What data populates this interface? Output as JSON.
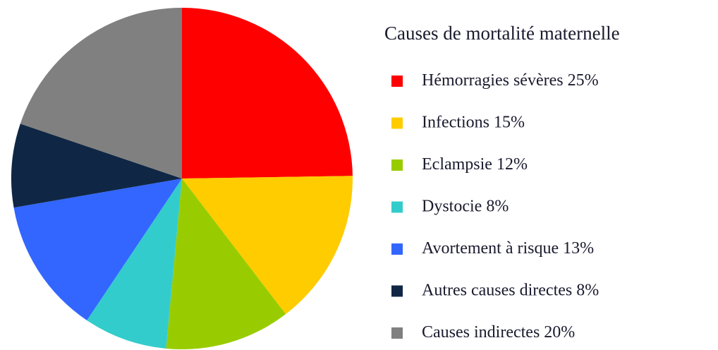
{
  "chart_data": {
    "type": "pie",
    "title": "Causes de mortalité maternelle",
    "categories": [
      "Hémorragies sévères",
      "Infections",
      "Eclampsie",
      "Dystocie",
      "Avortement à risque",
      "Autres causes directes",
      "Causes indirectes"
    ],
    "values": [
      25,
      15,
      12,
      8,
      13,
      8,
      20
    ],
    "value_labels": [
      "25%",
      "15%",
      "12%",
      "8%",
      "13%",
      "8%",
      "20%"
    ],
    "colors": [
      "#ff0000",
      "#ffcc00",
      "#99cc00",
      "#33cccc",
      "#3366ff",
      "#0f2744",
      "#808080"
    ]
  }
}
